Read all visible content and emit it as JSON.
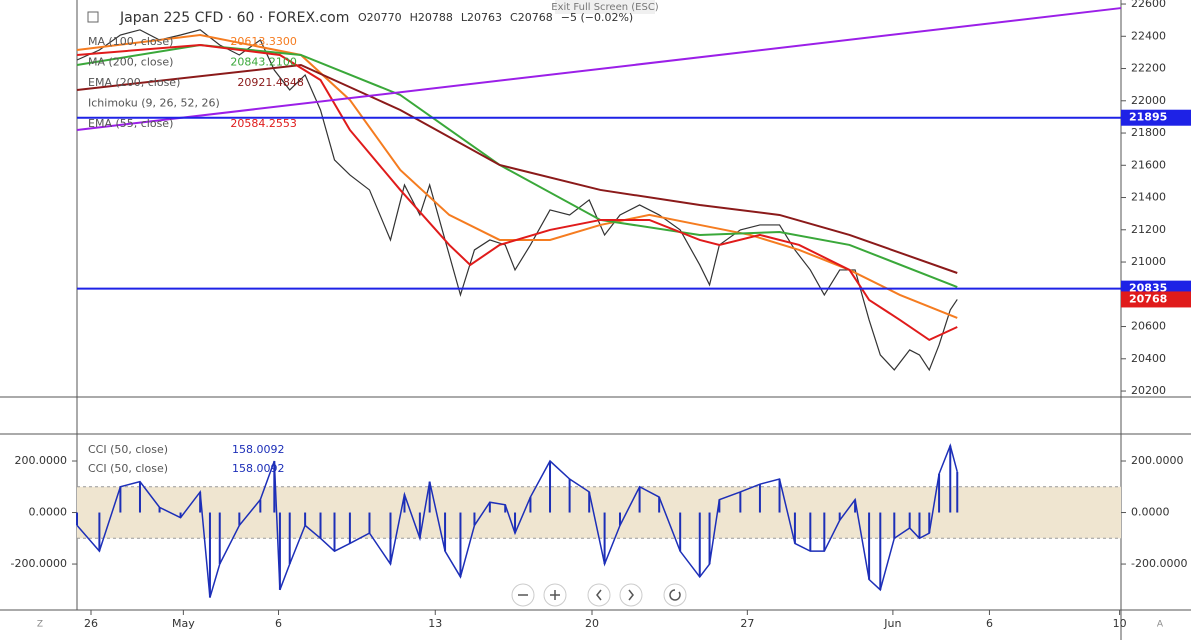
{
  "header": {
    "symbol": "Japan 225 CFD · 60 · FOREX.com",
    "ohlc": [
      "O20770",
      "H20788",
      "L20763",
      "C20768"
    ],
    "change": "−5 (−0.02%)",
    "exit": "Exit Full Screen (ESC)"
  },
  "toolbar": {
    "left": "Z",
    "right": "A"
  },
  "chart_data": [
    {
      "type": "line",
      "xlim": [
        0,
        746
      ],
      "ylim": [
        20163,
        22625
      ],
      "xticks": [
        {
          "value": 10,
          "label": "26"
        },
        {
          "value": 76,
          "label": "May"
        },
        {
          "value": 144,
          "label": "6"
        },
        {
          "value": 256,
          "label": "13"
        },
        {
          "value": 368,
          "label": "20"
        },
        {
          "value": 479,
          "label": "27"
        },
        {
          "value": 583,
          "label": "Jun"
        },
        {
          "value": 652,
          "label": "6"
        },
        {
          "value": 745,
          "label": "10"
        }
      ],
      "yticks": [
        20200,
        20400,
        20600,
        20800,
        21000,
        21200,
        21400,
        21600,
        21800,
        22000,
        22200,
        22400,
        22600
      ],
      "series": [
        {
          "color": "#333333",
          "x": [
            0,
            16,
            31,
            45,
            59,
            74,
            88,
            102,
            116,
            131,
            141,
            152,
            163,
            174,
            184,
            195,
            209,
            224,
            234,
            245,
            252,
            263,
            274,
            284,
            295,
            306,
            313,
            324,
            338,
            352,
            366,
            377,
            388,
            402,
            416,
            431,
            445,
            452,
            459,
            474,
            488,
            502,
            513,
            524,
            534,
            545,
            556,
            566,
            574,
            584,
            595,
            602,
            609,
            616,
            624,
            629
          ],
          "values": [
            22253,
            22315,
            22408,
            22440,
            22377,
            22408,
            22440,
            22346,
            22284,
            22377,
            22190,
            22067,
            22160,
            21943,
            21633,
            21540,
            21447,
            21137,
            21478,
            21292,
            21478,
            21137,
            20796,
            21075,
            21137,
            21106,
            20951,
            21106,
            21323,
            21292,
            21385,
            21168,
            21292,
            21354,
            21292,
            21199,
            20982,
            20858,
            21106,
            21199,
            21230,
            21230,
            21075,
            20951,
            20796,
            20951,
            20951,
            20641,
            20424,
            20331,
            20455,
            20424,
            20331,
            20486,
            20703,
            20768
          ]
        },
        {
          "name": "MA (100, close)",
          "legend_value": "20613.3300",
          "color": "#f57c20",
          "x": [
            0,
            88,
            160,
            195,
            231,
            266,
            302,
            338,
            374,
            409,
            445,
            481,
            516,
            552,
            588,
            629
          ],
          "values": [
            22315,
            22408,
            22284,
            22005,
            21571,
            21292,
            21137,
            21137,
            21230,
            21292,
            21230,
            21168,
            21075,
            20951,
            20796,
            20653
          ]
        },
        {
          "name": "MA (200, close)",
          "legend_value": "20843.2100",
          "color": "#3aa83a",
          "x": [
            0,
            88,
            160,
            231,
            302,
            374,
            445,
            502,
            552,
            629
          ],
          "values": [
            22222,
            22346,
            22284,
            22036,
            21602,
            21261,
            21168,
            21186,
            21106,
            20845
          ]
        },
        {
          "name": "EMA (200, close)",
          "legend_value": "20921.4848",
          "color": "#8b1a1a",
          "x": [
            0,
            160,
            231,
            302,
            374,
            445,
            502,
            552,
            629
          ],
          "values": [
            22067,
            22222,
            21943,
            21602,
            21447,
            21354,
            21292,
            21168,
            20932
          ]
        },
        {
          "name": "Ichimoku (9, 26, 52, 26)"
        },
        {
          "name": "EMA (55, close)",
          "legend_value": "20584.2553",
          "color": "#e01b1b",
          "x": [
            0,
            88,
            145,
            174,
            195,
            231,
            266,
            281,
            302,
            338,
            374,
            409,
            445,
            459,
            488,
            516,
            552,
            566,
            588,
            609,
            629
          ],
          "values": [
            22284,
            22346,
            22284,
            22129,
            21819,
            21447,
            21106,
            20982,
            21106,
            21199,
            21261,
            21261,
            21137,
            21106,
            21168,
            21106,
            20951,
            20765,
            20641,
            20517,
            20597
          ]
        },
        {
          "color": "#9b1fe8",
          "x": [
            0,
            746
          ],
          "values": [
            21819,
            22575
          ]
        }
      ],
      "hlines": [
        {
          "value": 21895,
          "color": "#1e22e6"
        },
        {
          "value": 20835,
          "color": "#1e22e6"
        }
      ],
      "last_price": 20768,
      "last_price_color": "#e01b1b"
    },
    {
      "type": "histogram-line",
      "xlim": [
        0,
        746
      ],
      "ylim": [
        -359,
        301
      ],
      "yticks": [
        {
          "value": 200,
          "label": "200.0000"
        },
        {
          "value": 0,
          "label": "0.0000"
        },
        {
          "value": -200,
          "label": "-200.0000"
        }
      ],
      "band": [
        -100,
        100
      ],
      "band_color": "#efe5d0",
      "legend": [
        {
          "name": "CCI (50, close)",
          "value": "158.0092"
        },
        {
          "name": "CCI (50, close)",
          "value": "158.0092"
        }
      ],
      "series": [
        {
          "color": "#1d2fb8",
          "x": [
            0,
            16,
            31,
            45,
            59,
            74,
            88,
            95,
            102,
            116,
            131,
            141,
            145,
            152,
            163,
            174,
            184,
            195,
            209,
            224,
            234,
            245,
            252,
            263,
            274,
            284,
            295,
            306,
            313,
            324,
            338,
            352,
            366,
            377,
            388,
            402,
            416,
            431,
            445,
            452,
            459,
            474,
            488,
            502,
            513,
            524,
            534,
            545,
            556,
            566,
            574,
            584,
            595,
            602,
            609,
            616,
            624,
            629
          ],
          "values": [
            -50,
            -150,
            100,
            120,
            20,
            -20,
            80,
            -330,
            -200,
            -50,
            50,
            200,
            -300,
            -200,
            -50,
            -100,
            -150,
            -120,
            -80,
            -200,
            70,
            -100,
            120,
            -150,
            -250,
            -50,
            40,
            30,
            -80,
            60,
            200,
            130,
            80,
            -200,
            -50,
            100,
            60,
            -150,
            -250,
            -200,
            50,
            80,
            110,
            130,
            -120,
            -150,
            -150,
            -30,
            50,
            -260,
            -300,
            -100,
            -60,
            -100,
            -80,
            150,
            260,
            158
          ]
        }
      ]
    }
  ]
}
